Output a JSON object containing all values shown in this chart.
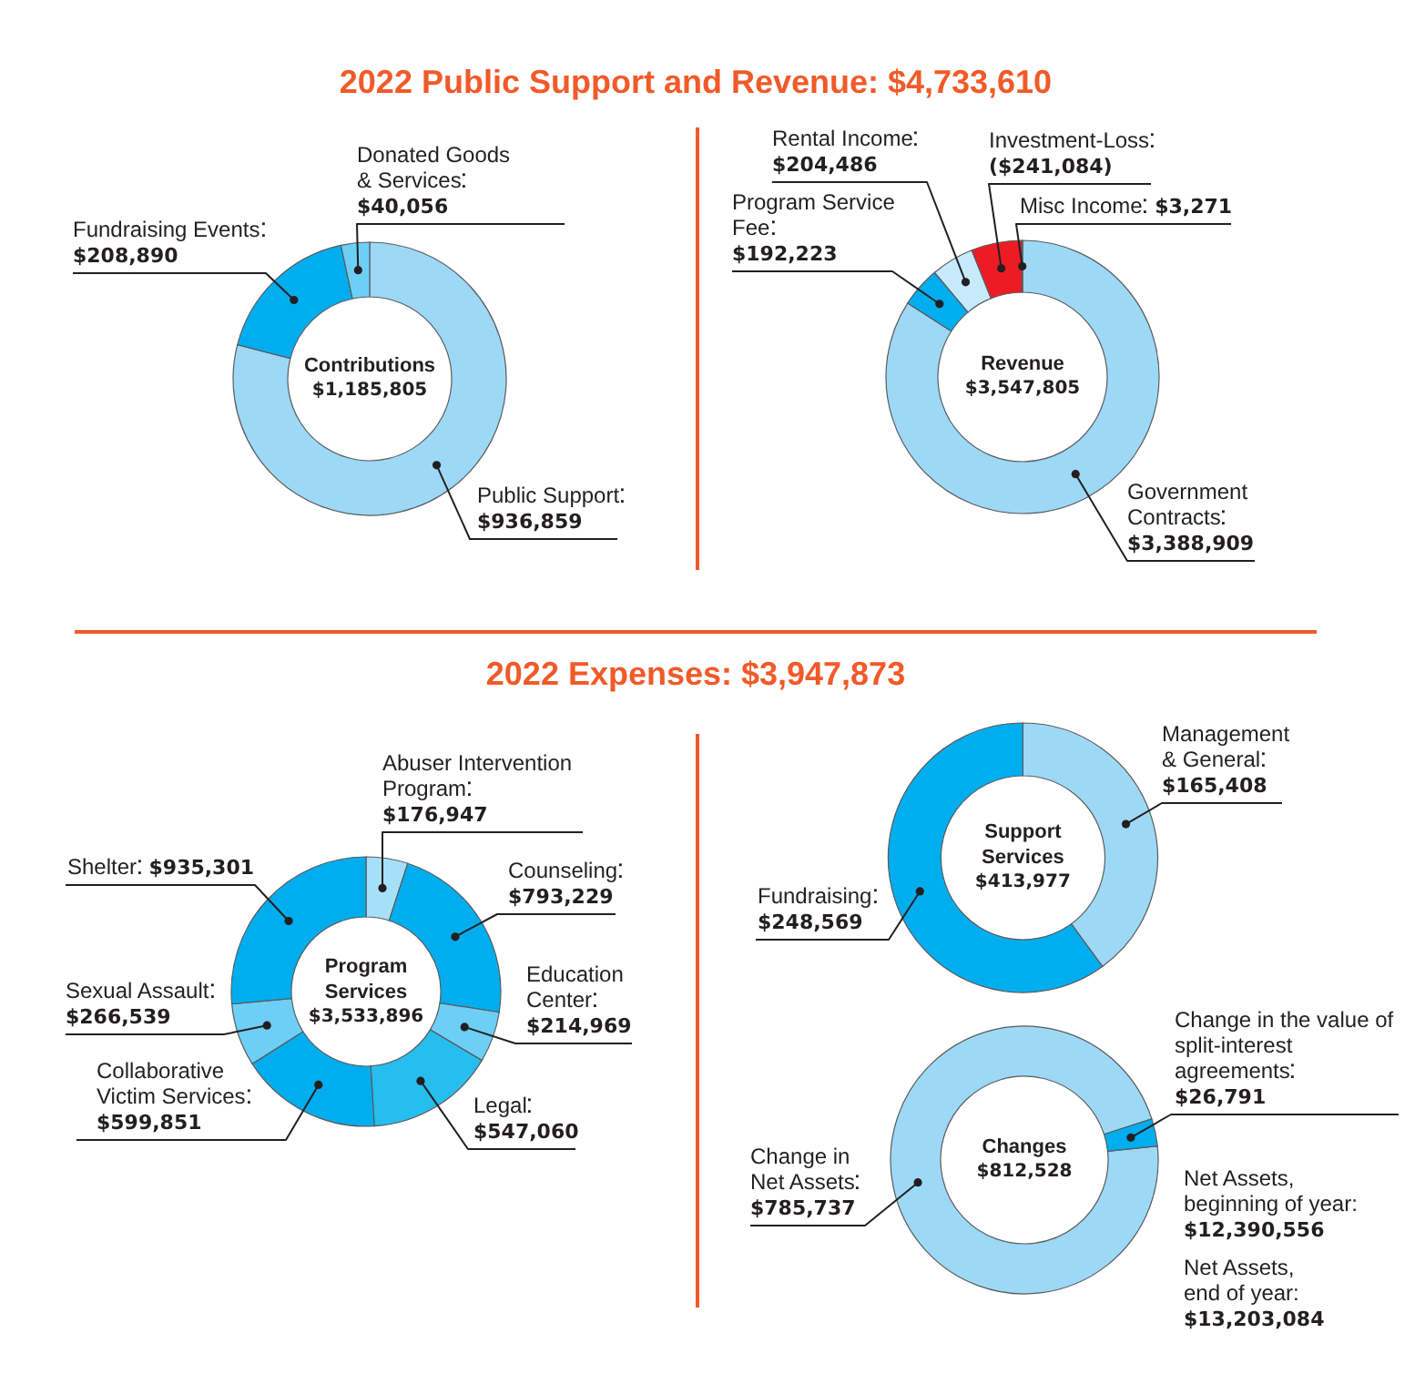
{
  "chart_data": [
    {
      "type": "donut",
      "title": "2022 Public Support and Revenue: $4,733,610",
      "categories": [
        "Public Support",
        "Fundraising Events",
        "Donated Goods & Services"
      ],
      "values": [
        936859,
        208890,
        40056
      ],
      "value_labels": [
        "$936,859",
        "$208,890",
        "$40,056"
      ],
      "colors": [
        "#9dd9f6",
        "#00aeef",
        "#6dcff6"
      ],
      "annotations": [
        "Contributions",
        "$1,185,805"
      ]
    },
    {
      "type": "donut",
      "categories": [
        "Government Contracts",
        "Program Service Fee",
        "Rental Income",
        "Investment-Loss",
        "Misc Income"
      ],
      "values": [
        3388909,
        192223,
        204486,
        241084,
        3271
      ],
      "value_labels": [
        "$3,388,909",
        "$192,223",
        "$204,486",
        "($241,084)",
        "$3,271"
      ],
      "colors": [
        "#9dd9f6",
        "#00aeef",
        "#c7eafa",
        "#ed1c24",
        "#9dd9f6"
      ],
      "annotations": [
        "Revenue",
        "$3,547,805"
      ]
    },
    {
      "type": "donut",
      "title": "2022 Expenses: $3,947,873",
      "categories": [
        "Abuser Intervention Program",
        "Counseling",
        "Education Center",
        "Legal",
        "Collaborative Victim Services",
        "Sexual Assault",
        "Shelter"
      ],
      "values": [
        176947,
        793229,
        214969,
        547060,
        599851,
        266539,
        935301
      ],
      "value_labels": [
        "$176,947",
        "$793,229",
        "$214,969",
        "$547,060",
        "$599,851",
        "$266,539",
        "$935,301"
      ],
      "colors": [
        "#a6e0f8",
        "#00aeef",
        "#6dcff6",
        "#27bdef",
        "#00aeef",
        "#6dcff6",
        "#00aeef"
      ],
      "annotations": [
        "Program Services",
        "$3,533,896"
      ]
    },
    {
      "type": "donut",
      "categories": [
        "Management & General",
        "Fundraising"
      ],
      "values": [
        165408,
        248569
      ],
      "value_labels": [
        "$165,408",
        "$248,569"
      ],
      "colors": [
        "#9dd9f6",
        "#00aeef"
      ],
      "annotations": [
        "Support Services",
        "$413,977"
      ]
    },
    {
      "type": "donut",
      "categories": [
        "Change in Net Assets",
        "Change in the value of split-interest agreements"
      ],
      "values": [
        785737,
        26791
      ],
      "value_labels": [
        "$785,737",
        "$26,791"
      ],
      "colors": [
        "#9dd9f6",
        "#00aeef"
      ],
      "annotations": [
        "Changes",
        "$812,528",
        "Net Assets, beginning of year: $12,390,556",
        "Net Assets, end of year: $13,203,084"
      ]
    }
  ]
}
